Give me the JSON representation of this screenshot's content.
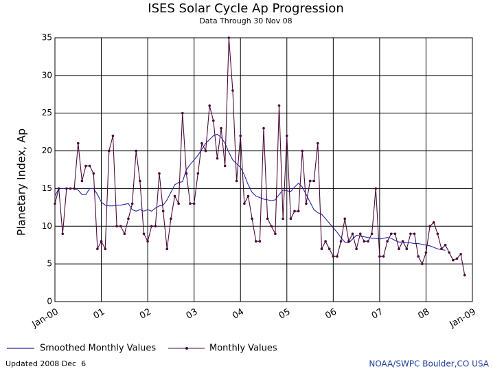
{
  "chart_data": {
    "type": "line",
    "title": "ISES Solar Cycle Ap Progression",
    "subtitle": "Data Through 30 Nov 08",
    "y_label": "Planetary Index, Ap",
    "annotations": [
      "Updated 2008 Dec  6",
      "NOAA/SWPC Boulder,CO USA"
    ],
    "xlim": [
      0,
      108
    ],
    "xticks": [
      {
        "value": 0,
        "label": "Jan-00"
      },
      {
        "value": 12,
        "label": "01"
      },
      {
        "value": 24,
        "label": "02"
      },
      {
        "value": 36,
        "label": "03"
      },
      {
        "value": 48,
        "label": "04"
      },
      {
        "value": 60,
        "label": "05"
      },
      {
        "value": 72,
        "label": "06"
      },
      {
        "value": 84,
        "label": "07"
      },
      {
        "value": 96,
        "label": "08"
      },
      {
        "value": 108,
        "label": "Jan-09"
      }
    ],
    "ylim": [
      0,
      35
    ],
    "yticks": [
      0,
      5,
      10,
      15,
      20,
      25,
      30,
      35
    ],
    "grid": true,
    "x": [
      0,
      1,
      2,
      3,
      4,
      5,
      6,
      7,
      8,
      9,
      10,
      11,
      12,
      13,
      14,
      15,
      16,
      17,
      18,
      19,
      20,
      21,
      22,
      23,
      24,
      25,
      26,
      27,
      28,
      29,
      30,
      31,
      32,
      33,
      34,
      35,
      36,
      37,
      38,
      39,
      40,
      41,
      42,
      43,
      44,
      45,
      46,
      47,
      48,
      49,
      50,
      51,
      52,
      53,
      54,
      55,
      56,
      57,
      58,
      59,
      60,
      61,
      62,
      63,
      64,
      65,
      66,
      67,
      68,
      69,
      70,
      71,
      72,
      73,
      74,
      75,
      76,
      77,
      78,
      79,
      80,
      81,
      82,
      83,
      84,
      85,
      86,
      87,
      88,
      89,
      90,
      91,
      92,
      93,
      94,
      95,
      96,
      97,
      98,
      99,
      100,
      101,
      102,
      103,
      104,
      105,
      106
    ],
    "series": [
      {
        "name": "Smoothed Monthly Values",
        "color": "#2424a8",
        "markers": false,
        "values": [
          14,
          15,
          15,
          15,
          15,
          15,
          14.8,
          14.2,
          14.2,
          15,
          15,
          14.2,
          13.2,
          12.8,
          12.7,
          12.7,
          12.8,
          12.8,
          12.9,
          13,
          12.2,
          12,
          12.2,
          12,
          12.2,
          12,
          12.4,
          12.7,
          12.8,
          13.5,
          14.5,
          15.5,
          15.8,
          15.9,
          17.5,
          18.2,
          18.8,
          19.4,
          20.2,
          21,
          21.5,
          22,
          22.2,
          21.8,
          21,
          19.8,
          18.8,
          18.3,
          17.8,
          16.8,
          15.5,
          14.5,
          14,
          13.8,
          13.6,
          13.5,
          13.4,
          13.5,
          14.2,
          14.8,
          14.7,
          14.6,
          15.2,
          15.7,
          15.2,
          14.2,
          13.2,
          12.2,
          11.8,
          11.6,
          11,
          10.4,
          9.8,
          9.2,
          8.5,
          7.9,
          7.8,
          8.3,
          8.8,
          8.7,
          8.6,
          8.5,
          8.4,
          8.4,
          8.3,
          8.4,
          8.5,
          8.4,
          8.1,
          7.9,
          7.9,
          7.8,
          7.8,
          7.7,
          7.7,
          7.6,
          7.5,
          7.4,
          7.2,
          7,
          6.9,
          6.8,
          null,
          null,
          null,
          null,
          null
        ]
      },
      {
        "name": "Monthly Values",
        "color": "#4a0a3a",
        "markers": true,
        "values": [
          13,
          15,
          9,
          15,
          15,
          15,
          21,
          16,
          18,
          18,
          17,
          7,
          8,
          7,
          20,
          22,
          10,
          10,
          9,
          11,
          13,
          20,
          16,
          9,
          8,
          10,
          10,
          17,
          12,
          7,
          11,
          14,
          13,
          25,
          17,
          13,
          13,
          17,
          21,
          20,
          26,
          24,
          19,
          23,
          18,
          35,
          28,
          16,
          22,
          13,
          14,
          11,
          8,
          8,
          23,
          11,
          10,
          9,
          26,
          11,
          22,
          11,
          12,
          12,
          20,
          13,
          16,
          16,
          21,
          7,
          8,
          7,
          6,
          6,
          8,
          11,
          8,
          9,
          7,
          9,
          8,
          8,
          9,
          15,
          6,
          6,
          8,
          9,
          9,
          7,
          8,
          7,
          9,
          9,
          6,
          5,
          6.5,
          10,
          10.5,
          9,
          7,
          7.5,
          6.5,
          5.5,
          5.7,
          6.3,
          3.5
        ]
      }
    ]
  }
}
